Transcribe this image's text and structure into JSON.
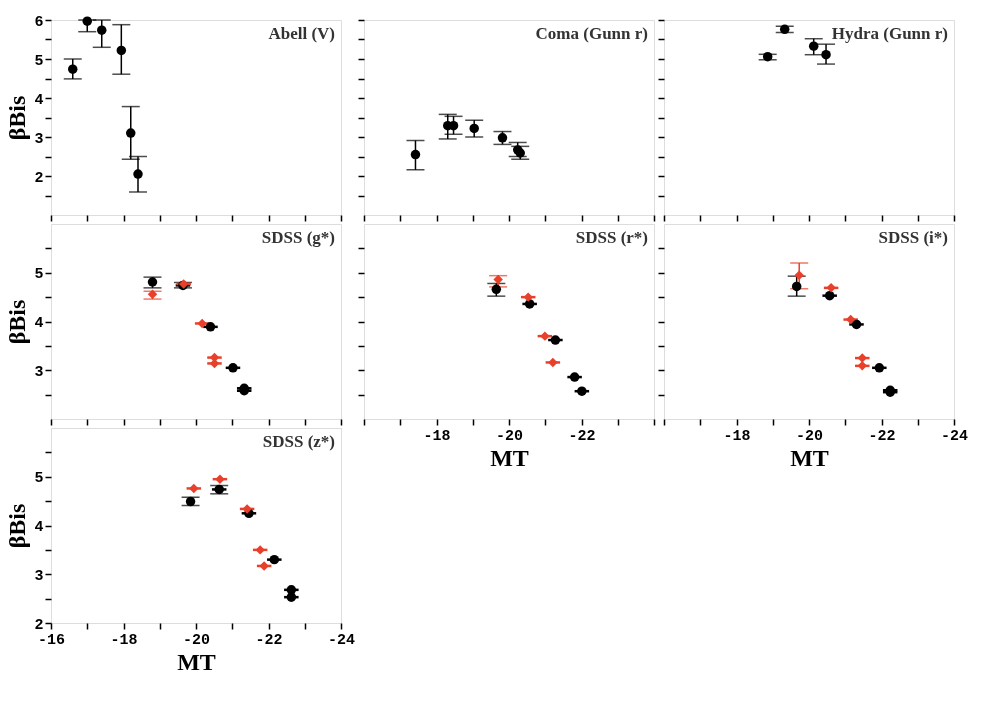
{
  "chart_data": [
    {
      "type": "scatter",
      "title": "Abell (V)",
      "ylabel": "βBis",
      "xlim": [
        -16,
        -24
      ],
      "xticks": [
        -16,
        {
          "value": -17,
          "label": null
        },
        -18,
        {
          "value": -19,
          "label": null
        },
        -20,
        {
          "value": -21,
          "label": null
        },
        -22,
        {
          "value": -23,
          "label": null
        },
        -24
      ],
      "ylim": [
        1,
        6
      ],
      "yticks": [
        {
          "value": 1.5,
          "label": null
        },
        2,
        {
          "value": 2.5,
          "label": null
        },
        3,
        {
          "value": 3.5,
          "label": null
        },
        4,
        {
          "value": 4.5,
          "label": null
        },
        5,
        {
          "value": 5.5,
          "label": null
        },
        6
      ],
      "tick_labels": "y",
      "series": [
        {
          "color": "#000000",
          "marker": "circle",
          "x": [
            -16.6,
            -17.0,
            -17.4,
            -17.94,
            -18.2,
            -18.4
          ],
          "values": [
            4.74,
            5.97,
            5.74,
            5.22,
            3.1,
            2.05
          ],
          "errors": [
            [
              4.49,
              5.0
            ],
            [
              5.7,
              6.0
            ],
            [
              5.3,
              6.0
            ],
            [
              4.61,
              5.88
            ],
            [
              2.43,
              3.78
            ],
            [
              1.59,
              2.5
            ]
          ]
        }
      ]
    },
    {
      "type": "scatter",
      "title": "Coma (Gunn r)",
      "xlim": [
        -16,
        -24
      ],
      "xticks": [
        -16,
        {
          "value": -17,
          "label": null
        },
        -18,
        {
          "value": -19,
          "label": null
        },
        -20,
        {
          "value": -21,
          "label": null
        },
        -22,
        {
          "value": -23,
          "label": null
        },
        -24
      ],
      "ylim": [
        1,
        6
      ],
      "yticks": [
        {
          "value": 1.5,
          "label": null
        },
        2,
        {
          "value": 2.5,
          "label": null
        },
        3,
        {
          "value": 3.5,
          "label": null
        },
        4,
        {
          "value": 4.5,
          "label": null
        },
        5,
        {
          "value": 5.5,
          "label": null
        },
        6
      ],
      "tick_labels": false,
      "series": [
        {
          "color": "#000000",
          "marker": "circle",
          "x": [
            -17.42,
            -18.31,
            -18.47,
            -19.04,
            -19.82,
            -20.24,
            -20.31
          ],
          "values": [
            2.55,
            3.29,
            3.29,
            3.22,
            2.98,
            2.67,
            2.59
          ],
          "errors": [
            [
              2.16,
              2.91
            ],
            [
              2.95,
              3.58
            ],
            [
              3.07,
              3.53
            ],
            [
              3.0,
              3.43
            ],
            [
              2.81,
              3.14
            ],
            [
              2.5,
              2.86
            ],
            [
              2.43,
              2.76
            ]
          ]
        }
      ]
    },
    {
      "type": "scatter",
      "title": "Hydra (Gunn r)",
      "xlim": [
        -16,
        -24
      ],
      "xticks": [
        -16,
        {
          "value": -17,
          "label": null
        },
        -18,
        {
          "value": -19,
          "label": null
        },
        -20,
        {
          "value": -21,
          "label": null
        },
        -22,
        {
          "value": -23,
          "label": null
        },
        -24
      ],
      "ylim": [
        1,
        6
      ],
      "yticks": [
        {
          "value": 1.5,
          "label": null
        },
        2,
        {
          "value": 2.5,
          "label": null
        },
        3,
        {
          "value": 3.5,
          "label": null
        },
        4,
        {
          "value": 4.5,
          "label": null
        },
        5,
        {
          "value": 5.5,
          "label": null
        },
        6
      ],
      "tick_labels": false,
      "series": [
        {
          "color": "#000000",
          "marker": "circle",
          "x": [
            -18.86,
            -19.33,
            -20.13,
            -20.47
          ],
          "values": [
            5.06,
            5.76,
            5.33,
            5.11
          ],
          "errors": [
            [
              4.98,
              5.12
            ],
            [
              5.68,
              5.84
            ],
            [
              5.11,
              5.52
            ],
            [
              4.87,
              5.38
            ]
          ]
        }
      ]
    },
    {
      "type": "scatter",
      "title": "SDSS (g*)",
      "ylabel": "βBis",
      "xlim": [
        -16,
        -24
      ],
      "xticks": [
        -16,
        {
          "value": -17,
          "label": null
        },
        -18,
        {
          "value": -19,
          "label": null
        },
        -20,
        {
          "value": -21,
          "label": null
        },
        -22,
        {
          "value": -23,
          "label": null
        },
        -24
      ],
      "ylim": [
        2,
        6
      ],
      "yticks": [
        {
          "value": 2.5,
          "label": null
        },
        3,
        {
          "value": 3.5,
          "label": null
        },
        4,
        {
          "value": 4.5,
          "label": null
        },
        5,
        {
          "value": 5.5,
          "label": null
        }
      ],
      "tick_labels": "y",
      "series": [
        {
          "color": "#000000",
          "marker": "circle",
          "x": [
            -18.8,
            -19.64,
            -20.4,
            -21.02,
            -21.33,
            -21.33
          ],
          "values": [
            4.81,
            4.74,
            3.89,
            3.05,
            2.63,
            2.58
          ],
          "errors": [
            [
              4.69,
              4.91
            ],
            [
              4.69,
              4.8
            ],
            null,
            null,
            null,
            null
          ],
          "xerrors": [
            null,
            0.2,
            0.2,
            0.2,
            0.2,
            0.2
          ]
        },
        {
          "color": "#e8402a",
          "marker": "diamond",
          "x": [
            -18.8,
            -19.66,
            -20.17,
            -20.51,
            -20.51
          ],
          "values": [
            4.56,
            4.77,
            3.96,
            3.26,
            3.14
          ],
          "errors": [
            [
              4.46,
              4.62
            ],
            null,
            null,
            null,
            null
          ],
          "xerrors": [
            null,
            0.2,
            0.2,
            0.2,
            0.2
          ]
        }
      ]
    },
    {
      "type": "scatter",
      "title": "SDSS (r*)",
      "xlabel": "MT",
      "xlim": [
        -16,
        -24
      ],
      "xticks": [
        {
          "value": -16,
          "label": null
        },
        {
          "value": -17,
          "label": null
        },
        -18,
        {
          "value": -19,
          "label": null
        },
        -20,
        {
          "value": -21,
          "label": null
        },
        -22,
        {
          "value": -23,
          "label": null
        },
        {
          "value": -24,
          "label": null
        }
      ],
      "ylim": [
        2,
        6
      ],
      "yticks": [
        {
          "value": 2.5,
          "label": null
        },
        3,
        {
          "value": 3.5,
          "label": null
        },
        4,
        {
          "value": 4.5,
          "label": null
        },
        5,
        {
          "value": 5.5,
          "label": null
        }
      ],
      "tick_labels": "x",
      "series": [
        {
          "color": "#000000",
          "marker": "circle",
          "x": [
            -19.65,
            -20.57,
            -21.28,
            -21.81,
            -22.01
          ],
          "values": [
            4.66,
            4.36,
            3.62,
            2.86,
            2.57
          ],
          "errors": [
            [
              4.52,
              4.78
            ],
            null,
            null,
            null,
            null
          ],
          "xerrors": [
            null,
            0.2,
            0.2,
            0.2,
            0.2
          ]
        },
        {
          "color": "#e8402a",
          "marker": "diamond",
          "x": [
            -19.7,
            -20.53,
            -20.99,
            -21.21
          ],
          "values": [
            4.86,
            4.5,
            3.7,
            3.16
          ],
          "errors": [
            [
              4.71,
              4.94
            ],
            null,
            null,
            null
          ],
          "xerrors": [
            null,
            0.2,
            0.2,
            0.2
          ]
        }
      ]
    },
    {
      "type": "scatter",
      "title": "SDSS (i*)",
      "xlabel": "MT",
      "xlim": [
        -16,
        -24
      ],
      "xticks": [
        {
          "value": -16,
          "label": null
        },
        {
          "value": -17,
          "label": null
        },
        -18,
        {
          "value": -19,
          "label": null
        },
        -20,
        {
          "value": -21,
          "label": null
        },
        -22,
        {
          "value": -23,
          "label": null
        },
        -24
      ],
      "ylim": [
        2,
        6
      ],
      "yticks": [
        {
          "value": 2.5,
          "label": null
        },
        3,
        {
          "value": 3.5,
          "label": null
        },
        4,
        {
          "value": 4.5,
          "label": null
        },
        5,
        {
          "value": 5.5,
          "label": null
        }
      ],
      "tick_labels": "x",
      "series": [
        {
          "color": "#000000",
          "marker": "circle",
          "x": [
            -19.66,
            -20.57,
            -21.31,
            -21.94,
            -22.24,
            -22.24
          ],
          "values": [
            4.72,
            4.53,
            3.94,
            3.05,
            2.59,
            2.55
          ],
          "errors": [
            [
              4.52,
              4.93
            ],
            null,
            null,
            null,
            null,
            null
          ],
          "xerrors": [
            null,
            0.2,
            0.2,
            0.2,
            0.2,
            0.2
          ]
        },
        {
          "color": "#e8402a",
          "marker": "diamond",
          "x": [
            -19.73,
            -20.61,
            -21.15,
            -21.47,
            -21.47
          ],
          "values": [
            4.95,
            4.69,
            4.04,
            3.25,
            3.09
          ],
          "errors": [
            [
              4.67,
              5.2
            ],
            null,
            null,
            null,
            null
          ],
          "xerrors": [
            null,
            0.2,
            0.2,
            0.2,
            0.2
          ]
        }
      ]
    },
    {
      "type": "scatter",
      "title": "SDSS (z*)",
      "ylabel": "βBis",
      "xlabel": "MT",
      "xlim": [
        -16,
        -24
      ],
      "xticks": [
        -16,
        {
          "value": -17,
          "label": null
        },
        -18,
        {
          "value": -19,
          "label": null
        },
        -20,
        {
          "value": -21,
          "label": null
        },
        -22,
        {
          "value": -23,
          "label": null
        },
        -24
      ],
      "ylim": [
        2,
        6
      ],
      "yticks": [
        2,
        {
          "value": 2.5,
          "label": null
        },
        3,
        {
          "value": 3.5,
          "label": null
        },
        4,
        {
          "value": 4.5,
          "label": null
        },
        5,
        {
          "value": 5.5,
          "label": null
        }
      ],
      "series": [
        {
          "color": "#000000",
          "marker": "circle",
          "x": [
            -19.85,
            -20.64,
            -21.46,
            -22.16,
            -22.63,
            -22.63
          ],
          "values": [
            4.49,
            4.74,
            4.25,
            3.3,
            2.68,
            2.53
          ],
          "errors": [
            [
              4.41,
              4.58
            ],
            [
              4.65,
              4.82
            ],
            null,
            null,
            null,
            null
          ],
          "xerrors": [
            null,
            0.2,
            0.2,
            0.2,
            0.2,
            0.2
          ]
        },
        {
          "color": "#e8402a",
          "marker": "diamond",
          "x": [
            -19.94,
            -20.66,
            -21.41,
            -21.77,
            -21.88
          ],
          "values": [
            4.76,
            4.95,
            4.34,
            3.5,
            3.17
          ],
          "errors": [
            null,
            null,
            null,
            null,
            null
          ],
          "xerrors": [
            0.2,
            0.2,
            0.2,
            0.2,
            0.2
          ]
        }
      ]
    }
  ]
}
